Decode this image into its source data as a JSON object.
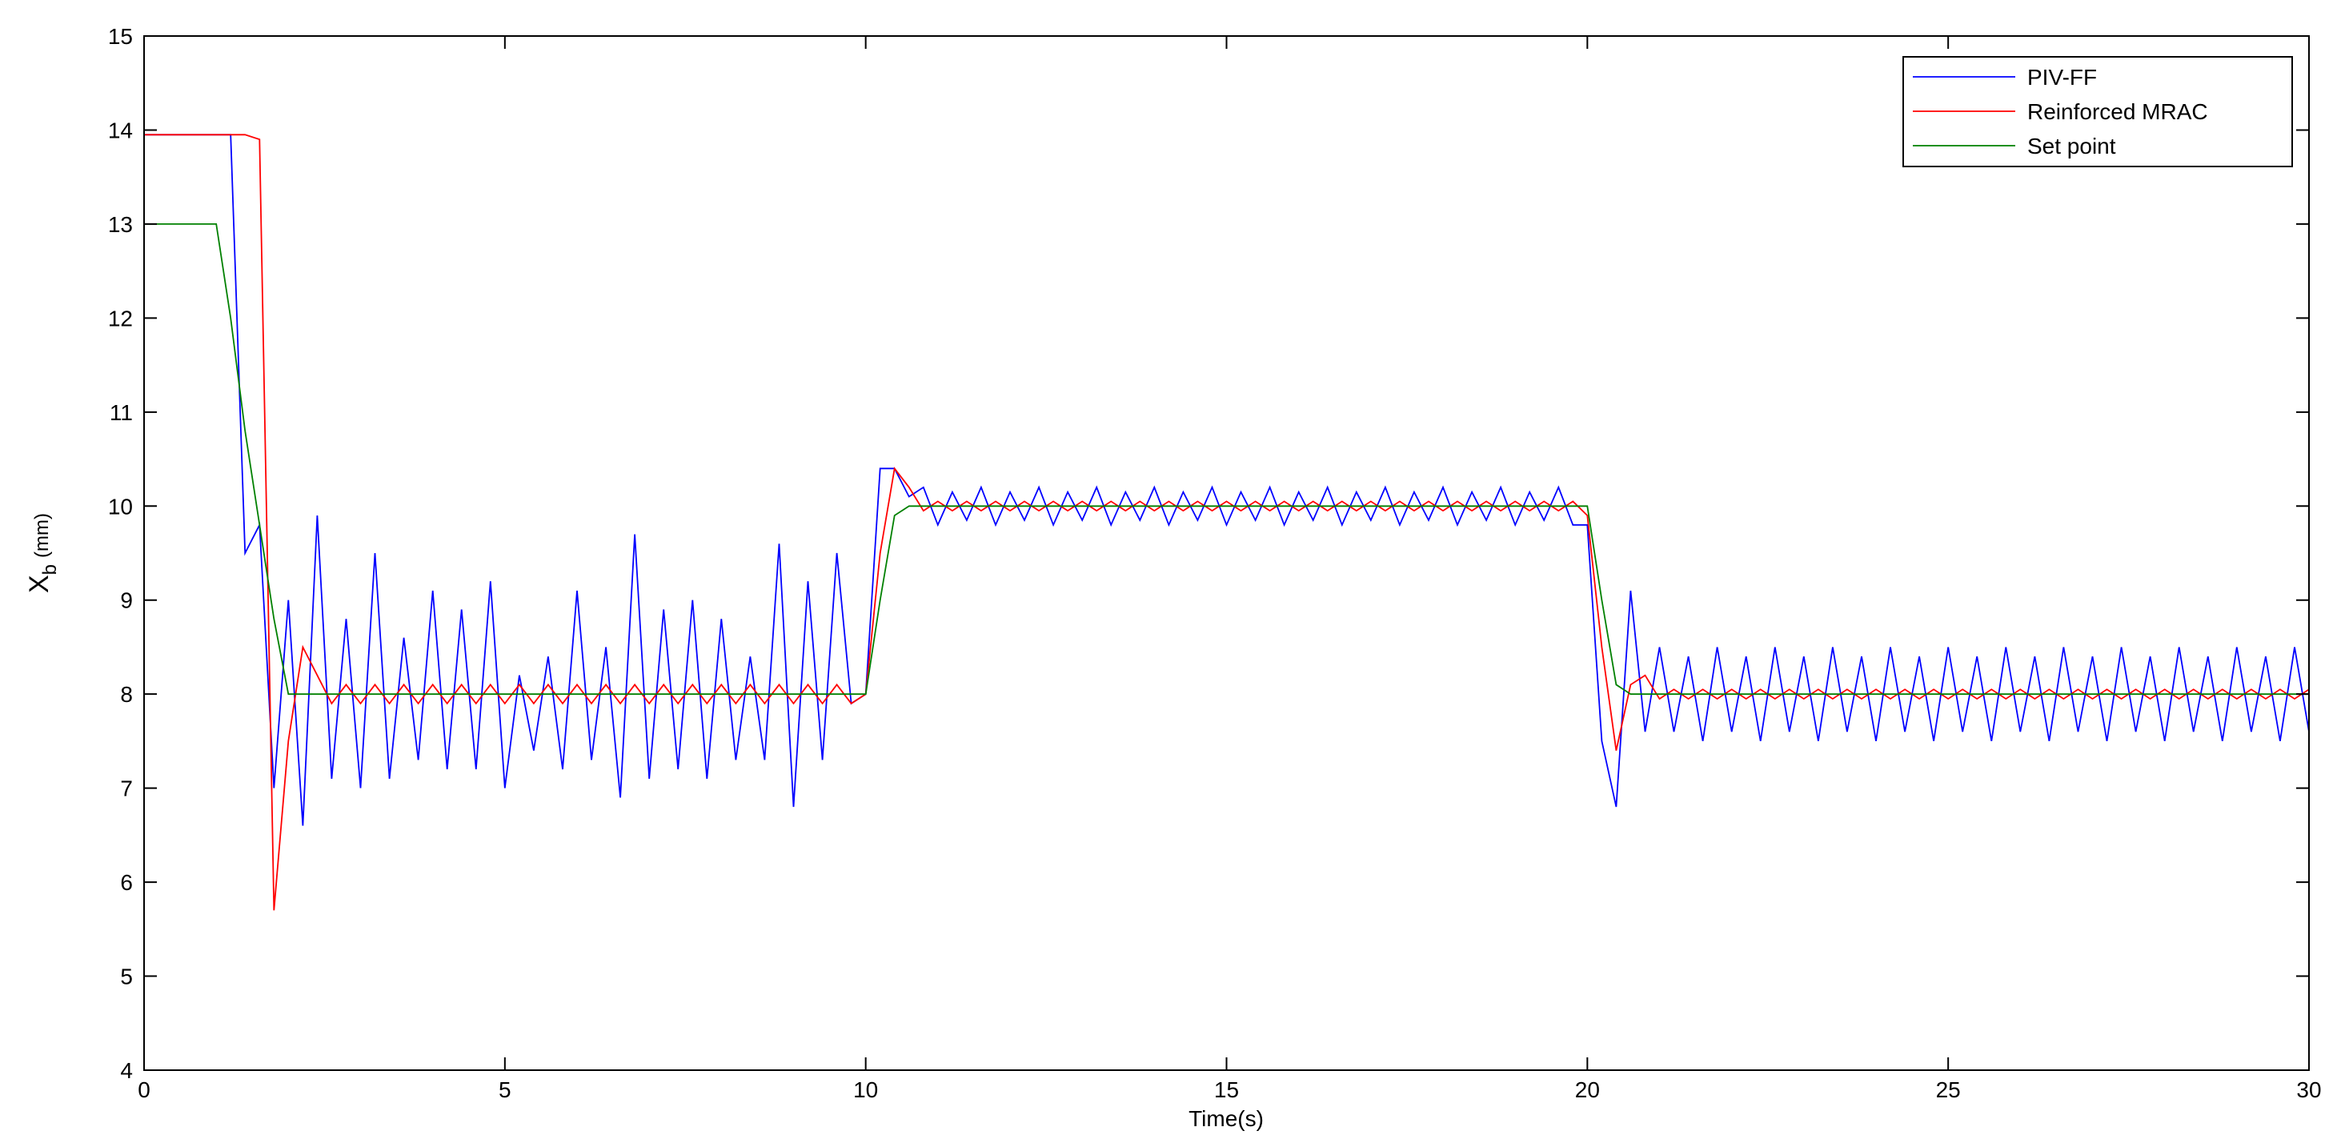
{
  "chart_data": {
    "type": "line",
    "x_label": "Time(s)",
    "y_label": {
      "symbol": "X",
      "subscript": "b",
      "unit": "(mm)"
    },
    "xlim": [
      0,
      30
    ],
    "xticks": [
      0,
      5,
      10,
      15,
      20,
      25,
      30
    ],
    "ylim": [
      4,
      15
    ],
    "yticks": [
      4,
      5,
      6,
      7,
      8,
      9,
      10,
      11,
      12,
      13,
      14,
      15
    ],
    "legend": "top-right",
    "x": [
      0,
      0.2,
      0.4,
      0.6,
      0.8,
      1,
      1.2,
      1.4,
      1.6,
      1.8,
      2,
      2.2,
      2.4,
      2.6,
      2.8,
      3,
      3.2,
      3.4,
      3.6,
      3.8,
      4,
      4.2,
      4.4,
      4.6,
      4.8,
      5,
      5.2,
      5.4,
      5.6,
      5.8,
      6,
      6.2,
      6.4,
      6.6,
      6.8,
      7,
      7.2,
      7.4,
      7.6,
      7.8,
      8,
      8.2,
      8.4,
      8.6,
      8.8,
      9,
      9.2,
      9.4,
      9.6,
      9.8,
      10,
      10.2,
      10.4,
      10.6,
      10.8,
      11,
      11.2,
      11.4,
      11.6,
      11.8,
      12,
      12.2,
      12.4,
      12.6,
      12.8,
      13,
      13.2,
      13.4,
      13.6,
      13.8,
      14,
      14.2,
      14.4,
      14.6,
      14.8,
      15,
      15.2,
      15.4,
      15.6,
      15.8,
      16,
      16.2,
      16.4,
      16.6,
      16.8,
      17,
      17.2,
      17.4,
      17.6,
      17.8,
      18,
      18.2,
      18.4,
      18.6,
      18.8,
      19,
      19.2,
      19.4,
      19.6,
      19.8,
      20,
      20.2,
      20.4,
      20.6,
      20.8,
      21,
      21.2,
      21.4,
      21.6,
      21.8,
      22,
      22.2,
      22.4,
      22.6,
      22.8,
      23,
      23.2,
      23.4,
      23.6,
      23.8,
      24,
      24.2,
      24.4,
      24.6,
      24.8,
      25,
      25.2,
      25.4,
      25.6,
      25.8,
      26,
      26.2,
      26.4,
      26.6,
      26.8,
      27,
      27.2,
      27.4,
      27.6,
      27.8,
      28,
      28.2,
      28.4,
      28.6,
      28.8,
      29,
      29.2,
      29.4,
      29.6,
      29.8,
      30
    ],
    "series": [
      {
        "name": "PIV-FF",
        "color": "#0000ff",
        "values": [
          13.95,
          13.95,
          13.95,
          13.95,
          13.95,
          13.95,
          13.95,
          9.5,
          9.8,
          7.0,
          9.0,
          6.6,
          9.9,
          7.1,
          8.8,
          7.0,
          9.5,
          7.1,
          8.6,
          7.3,
          9.1,
          7.2,
          8.9,
          7.2,
          9.2,
          7.0,
          8.2,
          7.4,
          8.4,
          7.2,
          9.1,
          7.3,
          8.5,
          6.9,
          9.7,
          7.1,
          8.9,
          7.2,
          9.0,
          7.1,
          8.8,
          7.3,
          8.4,
          7.3,
          9.6,
          6.8,
          9.2,
          7.3,
          9.5,
          7.9,
          8.0,
          10.4,
          10.4,
          10.1,
          10.2,
          9.8,
          10.15,
          9.85,
          10.2,
          9.8,
          10.15,
          9.85,
          10.2,
          9.8,
          10.15,
          9.85,
          10.2,
          9.8,
          10.15,
          9.85,
          10.2,
          9.8,
          10.15,
          9.85,
          10.2,
          9.8,
          10.15,
          9.85,
          10.2,
          9.8,
          10.15,
          9.85,
          10.2,
          9.8,
          10.15,
          9.85,
          10.2,
          9.8,
          10.15,
          9.85,
          10.2,
          9.8,
          10.15,
          9.85,
          10.2,
          9.8,
          10.15,
          9.85,
          10.2,
          9.8,
          9.8,
          7.5,
          6.8,
          9.1,
          7.6,
          8.5,
          7.6,
          8.4,
          7.5,
          8.5,
          7.6,
          8.4,
          7.5,
          8.5,
          7.6,
          8.4,
          7.5,
          8.5,
          7.6,
          8.4,
          7.5,
          8.5,
          7.6,
          8.4,
          7.5,
          8.5,
          7.6,
          8.4,
          7.5,
          8.5,
          7.6,
          8.4,
          7.5,
          8.5,
          7.6,
          8.4,
          7.5,
          8.5,
          7.6,
          8.4,
          7.5,
          8.5,
          7.6,
          8.4,
          7.5,
          8.5,
          7.6,
          8.4,
          7.5,
          8.5,
          7.6
        ]
      },
      {
        "name": "Reinforced MRAC",
        "color": "#ff0000",
        "values": [
          13.95,
          13.95,
          13.95,
          13.95,
          13.95,
          13.95,
          13.95,
          13.95,
          13.9,
          5.7,
          7.5,
          8.5,
          8.2,
          7.9,
          8.1,
          7.9,
          8.1,
          7.9,
          8.1,
          7.9,
          8.1,
          7.9,
          8.1,
          7.9,
          8.1,
          7.9,
          8.1,
          7.9,
          8.1,
          7.9,
          8.1,
          7.9,
          8.1,
          7.9,
          8.1,
          7.9,
          8.1,
          7.9,
          8.1,
          7.9,
          8.1,
          7.9,
          8.1,
          7.9,
          8.1,
          7.9,
          8.1,
          7.9,
          8.1,
          7.9,
          8.0,
          9.5,
          10.4,
          10.2,
          9.95,
          10.05,
          9.95,
          10.05,
          9.95,
          10.05,
          9.95,
          10.05,
          9.95,
          10.05,
          9.95,
          10.05,
          9.95,
          10.05,
          9.95,
          10.05,
          9.95,
          10.05,
          9.95,
          10.05,
          9.95,
          10.05,
          9.95,
          10.05,
          9.95,
          10.05,
          9.95,
          10.05,
          9.95,
          10.05,
          9.95,
          10.05,
          9.95,
          10.05,
          9.95,
          10.05,
          9.95,
          10.05,
          9.95,
          10.05,
          9.95,
          10.05,
          9.95,
          10.05,
          9.95,
          10.05,
          9.9,
          8.5,
          7.4,
          8.1,
          8.2,
          7.95,
          8.05,
          7.95,
          8.05,
          7.95,
          8.05,
          7.95,
          8.05,
          7.95,
          8.05,
          7.95,
          8.05,
          7.95,
          8.05,
          7.95,
          8.05,
          7.95,
          8.05,
          7.95,
          8.05,
          7.95,
          8.05,
          7.95,
          8.05,
          7.95,
          8.05,
          7.95,
          8.05,
          7.95,
          8.05,
          7.95,
          8.05,
          7.95,
          8.05,
          7.95,
          8.05,
          7.95,
          8.05,
          7.95,
          8.05,
          7.95,
          8.05,
          7.95,
          8.05,
          7.95,
          8.05
        ]
      },
      {
        "name": "Set point",
        "color": "#008000",
        "values": [
          13,
          13,
          13,
          13,
          13,
          13,
          12.0,
          10.8,
          9.8,
          8.8,
          8,
          8,
          8,
          8,
          8,
          8,
          8,
          8,
          8,
          8,
          8,
          8,
          8,
          8,
          8,
          8,
          8,
          8,
          8,
          8,
          8,
          8,
          8,
          8,
          8,
          8,
          8,
          8,
          8,
          8,
          8,
          8,
          8,
          8,
          8,
          8,
          8,
          8,
          8,
          8,
          8,
          9.0,
          9.9,
          10,
          10,
          10,
          10,
          10,
          10,
          10,
          10,
          10,
          10,
          10,
          10,
          10,
          10,
          10,
          10,
          10,
          10,
          10,
          10,
          10,
          10,
          10,
          10,
          10,
          10,
          10,
          10,
          10,
          10,
          10,
          10,
          10,
          10,
          10,
          10,
          10,
          10,
          10,
          10,
          10,
          10,
          10,
          10,
          10,
          10,
          10,
          10,
          9.0,
          8.1,
          8,
          8,
          8,
          8,
          8,
          8,
          8,
          8,
          8,
          8,
          8,
          8,
          8,
          8,
          8,
          8,
          8,
          8,
          8,
          8,
          8,
          8,
          8,
          8,
          8,
          8,
          8,
          8,
          8,
          8,
          8,
          8,
          8,
          8,
          8,
          8,
          8,
          8,
          8,
          8,
          8,
          8,
          8,
          8,
          8,
          8,
          8,
          8
        ]
      }
    ]
  }
}
